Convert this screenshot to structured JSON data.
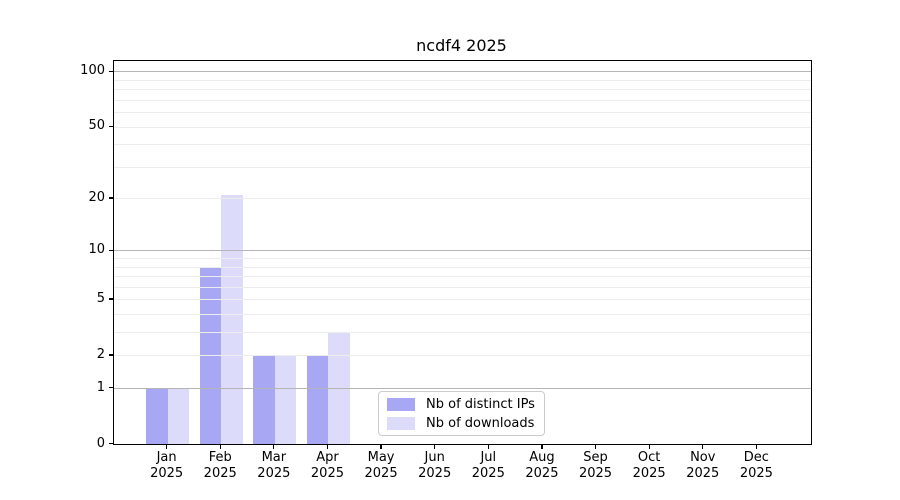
{
  "title": "ncdf4 2025",
  "chart_data": {
    "type": "bar",
    "title": "ncdf4 2025",
    "categories": [
      "Jan 2025",
      "Feb 2025",
      "Mar 2025",
      "Apr 2025",
      "May 2025",
      "Jun 2025",
      "Jul 2025",
      "Aug 2025",
      "Sep 2025",
      "Oct 2025",
      "Nov 2025",
      "Dec 2025"
    ],
    "xtick_months": [
      "Jan",
      "Feb",
      "Mar",
      "Apr",
      "May",
      "Jun",
      "Jul",
      "Aug",
      "Sep",
      "Oct",
      "Nov",
      "Dec"
    ],
    "xtick_year": "2025",
    "series": [
      {
        "name": "Nb of distinct IPs",
        "color": "#a7a7f3",
        "values": [
          1,
          8,
          2,
          2,
          0,
          0,
          0,
          0,
          0,
          0,
          0,
          0
        ]
      },
      {
        "name": "Nb of downloads",
        "color": "#dcdcfa",
        "values": [
          1,
          21,
          2,
          3,
          0,
          0,
          0,
          0,
          0,
          0,
          0,
          0
        ]
      }
    ],
    "yscale": "log10(1+y)",
    "ylim": [
      0,
      114
    ],
    "yticks": [
      0,
      1,
      2,
      5,
      10,
      20,
      50,
      100
    ],
    "major_gridlines": [
      1,
      10,
      100
    ],
    "minor_gridlines": [
      2,
      3,
      4,
      5,
      6,
      7,
      8,
      9,
      20,
      30,
      40,
      50,
      60,
      70,
      80,
      90
    ],
    "grid": "horizontal",
    "legend_position": "lower center"
  },
  "legend": {
    "items": [
      {
        "label": "Nb of distinct IPs",
        "color": "#a7a7f3"
      },
      {
        "label": "Nb of downloads",
        "color": "#dcdcfa"
      }
    ]
  },
  "colors": {
    "bar_distinct_ips": "#a7a7f3",
    "bar_downloads": "#dcdcfa",
    "grid_minor": "#ededed",
    "grid_major": "#b5b5b5",
    "axis": "#000000",
    "legend_border": "#cccccc",
    "background": "#ffffff"
  }
}
